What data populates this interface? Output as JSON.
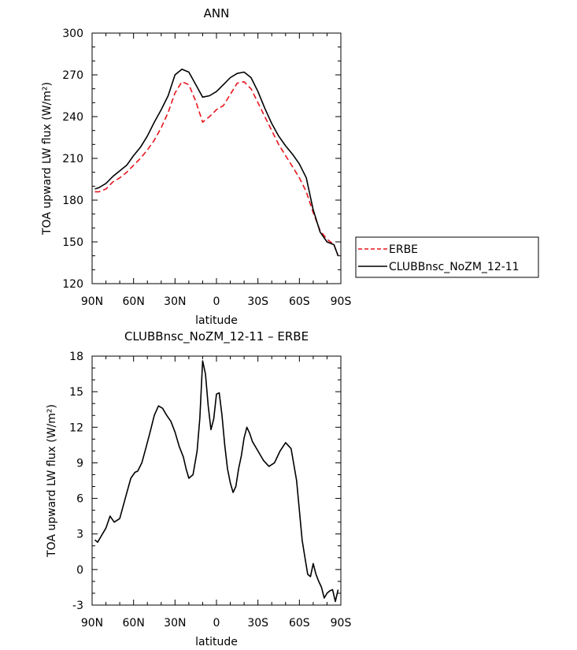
{
  "chart_data": [
    {
      "type": "line",
      "title": "ANN",
      "xlabel": "latitude",
      "ylabel": "TOA upward LW flux (W/m²)",
      "xlim": [
        90,
        -90
      ],
      "ylim": [
        120,
        300
      ],
      "x_ticks": [
        90,
        60,
        30,
        0,
        -30,
        -60,
        -90
      ],
      "x_tick_labels": [
        "90N",
        "60N",
        "30N",
        "0",
        "30S",
        "60S",
        "90S"
      ],
      "y_ticks": [
        120,
        150,
        180,
        210,
        240,
        270,
        300
      ],
      "y_tick_labels": [
        "120",
        "150",
        "180",
        "210",
        "240",
        "270",
        "300"
      ],
      "legend_position": "right",
      "series": [
        {
          "name": "ERBE",
          "color": "#e8141c",
          "dash": "dashed",
          "x": [
            88,
            85,
            80,
            75,
            70,
            65,
            60,
            55,
            50,
            45,
            40,
            35,
            30,
            25,
            20,
            15,
            10,
            5,
            0,
            -5,
            -10,
            -15,
            -20,
            -25,
            -30,
            -35,
            -40,
            -45,
            -50,
            -55,
            -60,
            -65,
            -70,
            -75,
            -80,
            -85,
            -88
          ],
          "values": [
            186,
            186,
            188,
            193,
            196,
            200,
            205,
            210,
            216,
            223,
            232,
            243,
            257,
            265,
            263,
            251,
            236,
            240,
            245,
            248,
            256,
            264,
            265,
            260,
            250,
            240,
            230,
            220,
            212,
            204,
            196,
            186,
            171,
            158,
            152,
            148,
            140
          ]
        },
        {
          "name": "CLUBBnsc_NoZM_12-11",
          "color": "#000000",
          "dash": "solid",
          "x": [
            88,
            85,
            80,
            75,
            70,
            65,
            60,
            55,
            50,
            45,
            40,
            35,
            30,
            25,
            20,
            15,
            10,
            5,
            0,
            -5,
            -10,
            -15,
            -20,
            -25,
            -30,
            -35,
            -40,
            -45,
            -50,
            -55,
            -60,
            -65,
            -70,
            -75,
            -80,
            -85,
            -88
          ],
          "values": [
            188,
            189,
            192,
            197,
            201,
            205,
            212,
            218,
            226,
            236,
            245,
            255,
            270,
            274,
            272,
            263,
            254,
            255,
            258,
            263,
            268,
            271,
            272,
            268,
            258,
            246,
            235,
            226,
            219,
            213,
            206,
            196,
            173,
            157,
            150,
            148,
            140
          ]
        }
      ]
    },
    {
      "type": "line",
      "title": "CLUBBnsc_NoZM_12-11 – ERBE",
      "xlabel": "latitude",
      "ylabel": "TOA upward LW flux (W/m²)",
      "xlim": [
        90,
        -90
      ],
      "ylim": [
        -3,
        18
      ],
      "x_ticks": [
        90,
        60,
        30,
        0,
        -30,
        -60,
        -90
      ],
      "x_tick_labels": [
        "90N",
        "60N",
        "30N",
        "0",
        "30S",
        "60S",
        "90S"
      ],
      "y_ticks": [
        -3,
        0,
        3,
        6,
        9,
        12,
        15,
        18
      ],
      "y_tick_labels": [
        "-3",
        "0",
        "3",
        "6",
        "9",
        "12",
        "15",
        "18"
      ],
      "series": [
        {
          "color": "#000000",
          "dash": "solid",
          "x": [
            88,
            86,
            80,
            77,
            74,
            70,
            66,
            62,
            59,
            57,
            54,
            51,
            48,
            45,
            42,
            39,
            36,
            33,
            30,
            27,
            24,
            22,
            20,
            17,
            14,
            12,
            10,
            8,
            6,
            4,
            2,
            0,
            -2,
            -4,
            -6,
            -8,
            -10,
            -12,
            -14,
            -16,
            -18,
            -20,
            -22,
            -24,
            -26,
            -30,
            -34,
            -38,
            -42,
            -46,
            -50,
            -54,
            -58,
            -60,
            -62,
            -64,
            -66,
            -68,
            -70,
            -72,
            -74,
            -76,
            -78,
            -80,
            -82,
            -84,
            -86,
            -88
          ],
          "values": [
            2.5,
            2.3,
            3.5,
            4.5,
            4.0,
            4.3,
            6.0,
            7.7,
            8.2,
            8.3,
            9.0,
            10.3,
            11.6,
            13.0,
            13.8,
            13.6,
            13.0,
            12.5,
            11.6,
            10.4,
            9.5,
            8.5,
            7.7,
            8.0,
            10.0,
            12.8,
            17.6,
            16.5,
            13.8,
            11.8,
            12.7,
            14.8,
            14.9,
            13.0,
            10.5,
            8.5,
            7.3,
            6.5,
            7.0,
            8.5,
            9.6,
            11.1,
            12.0,
            11.5,
            10.8,
            10.0,
            9.2,
            8.7,
            9.0,
            10.0,
            10.7,
            10.2,
            7.5,
            5.0,
            2.5,
            1.0,
            -0.4,
            -0.6,
            0.5,
            -0.4,
            -1.0,
            -1.5,
            -2.4,
            -2.0,
            -1.8,
            -1.7,
            -2.7,
            -1.7
          ]
        }
      ]
    }
  ]
}
